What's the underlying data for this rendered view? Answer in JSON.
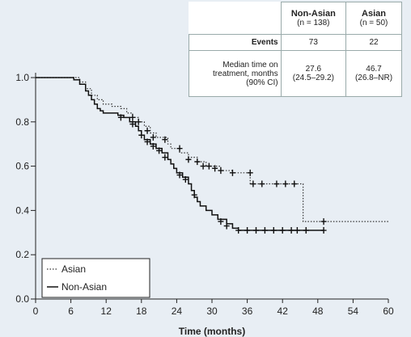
{
  "chart_data": {
    "type": "line",
    "subtype": "kaplan-meier step plot",
    "xlabel": "Time (months)",
    "ylabel": "",
    "xlim": [
      0,
      60
    ],
    "ylim": [
      0,
      1.0
    ],
    "x_ticks": [
      "0",
      "6",
      "12",
      "18",
      "24",
      "30",
      "36",
      "42",
      "48",
      "54",
      "60"
    ],
    "y_ticks": [
      "0.0",
      "0.2",
      "0.4",
      "0.6",
      "0.8",
      "1.0"
    ],
    "grid": false,
    "legend_placement": "bottom-left",
    "series": [
      {
        "name": "Asian",
        "line_style": "dotted",
        "color": "#333333",
        "steps": [
          [
            0,
            1.0
          ],
          [
            7.5,
            0.98
          ],
          [
            8.5,
            0.95
          ],
          [
            9.5,
            0.92
          ],
          [
            10.5,
            0.9
          ],
          [
            11.5,
            0.88
          ],
          [
            13,
            0.87
          ],
          [
            14.5,
            0.86
          ],
          [
            15.5,
            0.84
          ],
          [
            16.5,
            0.82
          ],
          [
            17.5,
            0.8
          ],
          [
            18.5,
            0.78
          ],
          [
            19.5,
            0.75
          ],
          [
            20.5,
            0.73
          ],
          [
            22.5,
            0.7
          ],
          [
            23,
            0.68
          ],
          [
            24.5,
            0.66
          ],
          [
            26,
            0.64
          ],
          [
            27.5,
            0.62
          ],
          [
            29,
            0.6
          ],
          [
            31.5,
            0.58
          ],
          [
            33.5,
            0.57
          ],
          [
            36.5,
            0.52
          ],
          [
            45.5,
            0.35
          ],
          [
            60,
            0.35
          ]
        ],
        "censor_marks": [
          [
            16.5,
            0.82
          ],
          [
            17.5,
            0.8
          ],
          [
            19,
            0.76
          ],
          [
            20,
            0.73
          ],
          [
            22,
            0.72
          ],
          [
            24.5,
            0.68
          ],
          [
            26,
            0.63
          ],
          [
            27.5,
            0.62
          ],
          [
            28.5,
            0.6
          ],
          [
            29.5,
            0.6
          ],
          [
            30.5,
            0.59
          ],
          [
            31.5,
            0.58
          ],
          [
            33.5,
            0.57
          ],
          [
            36.5,
            0.57
          ],
          [
            37,
            0.52
          ],
          [
            38.5,
            0.52
          ],
          [
            41,
            0.52
          ],
          [
            42.5,
            0.52
          ],
          [
            44,
            0.52
          ],
          [
            49,
            0.35
          ]
        ]
      },
      {
        "name": "Non-Asian",
        "line_style": "solid",
        "color": "#111111",
        "steps": [
          [
            0,
            1.0
          ],
          [
            6.5,
            0.99
          ],
          [
            7.5,
            0.97
          ],
          [
            8.5,
            0.94
          ],
          [
            9,
            0.92
          ],
          [
            9.5,
            0.9
          ],
          [
            10,
            0.88
          ],
          [
            10.5,
            0.86
          ],
          [
            11,
            0.85
          ],
          [
            11.5,
            0.84
          ],
          [
            14,
            0.83
          ],
          [
            15,
            0.82
          ],
          [
            16,
            0.8
          ],
          [
            17,
            0.78
          ],
          [
            17.5,
            0.76
          ],
          [
            18,
            0.74
          ],
          [
            18.5,
            0.72
          ],
          [
            19.5,
            0.7
          ],
          [
            20.5,
            0.68
          ],
          [
            21.5,
            0.66
          ],
          [
            22.5,
            0.63
          ],
          [
            23,
            0.61
          ],
          [
            23.5,
            0.59
          ],
          [
            24,
            0.57
          ],
          [
            25,
            0.55
          ],
          [
            26,
            0.52
          ],
          [
            26.5,
            0.49
          ],
          [
            27,
            0.46
          ],
          [
            27.5,
            0.44
          ],
          [
            28,
            0.42
          ],
          [
            29,
            0.4
          ],
          [
            30,
            0.38
          ],
          [
            31,
            0.36
          ],
          [
            32.5,
            0.34
          ],
          [
            33.5,
            0.32
          ],
          [
            34.5,
            0.31
          ],
          [
            49,
            0.31
          ]
        ],
        "censor_marks": [
          [
            14.5,
            0.82
          ],
          [
            16.5,
            0.79
          ],
          [
            18,
            0.74
          ],
          [
            19,
            0.71
          ],
          [
            20,
            0.69
          ],
          [
            21,
            0.67
          ],
          [
            22,
            0.64
          ],
          [
            24.5,
            0.56
          ],
          [
            25.5,
            0.54
          ],
          [
            27,
            0.47
          ],
          [
            31.5,
            0.35
          ],
          [
            32.5,
            0.33
          ],
          [
            34.5,
            0.31
          ],
          [
            36,
            0.31
          ],
          [
            37.5,
            0.31
          ],
          [
            39,
            0.31
          ],
          [
            40.5,
            0.31
          ],
          [
            42,
            0.31
          ],
          [
            43.5,
            0.31
          ],
          [
            44.5,
            0.31
          ],
          [
            46,
            0.31
          ],
          [
            49,
            0.31
          ]
        ]
      }
    ],
    "table": {
      "columns": [
        {
          "name": "Non-Asian",
          "n": "(n = 138)"
        },
        {
          "name": "Asian",
          "n": "(n = 50)"
        }
      ],
      "rows": [
        {
          "label": "Events",
          "values": [
            "73",
            "22"
          ]
        },
        {
          "label_lines": [
            "Median time on",
            "treatment, months",
            "(90% CI)"
          ],
          "values": [
            [
              "27.6",
              "(24.5–29.2)"
            ],
            [
              "46.7",
              "(26.8–NR)"
            ]
          ]
        }
      ]
    }
  }
}
